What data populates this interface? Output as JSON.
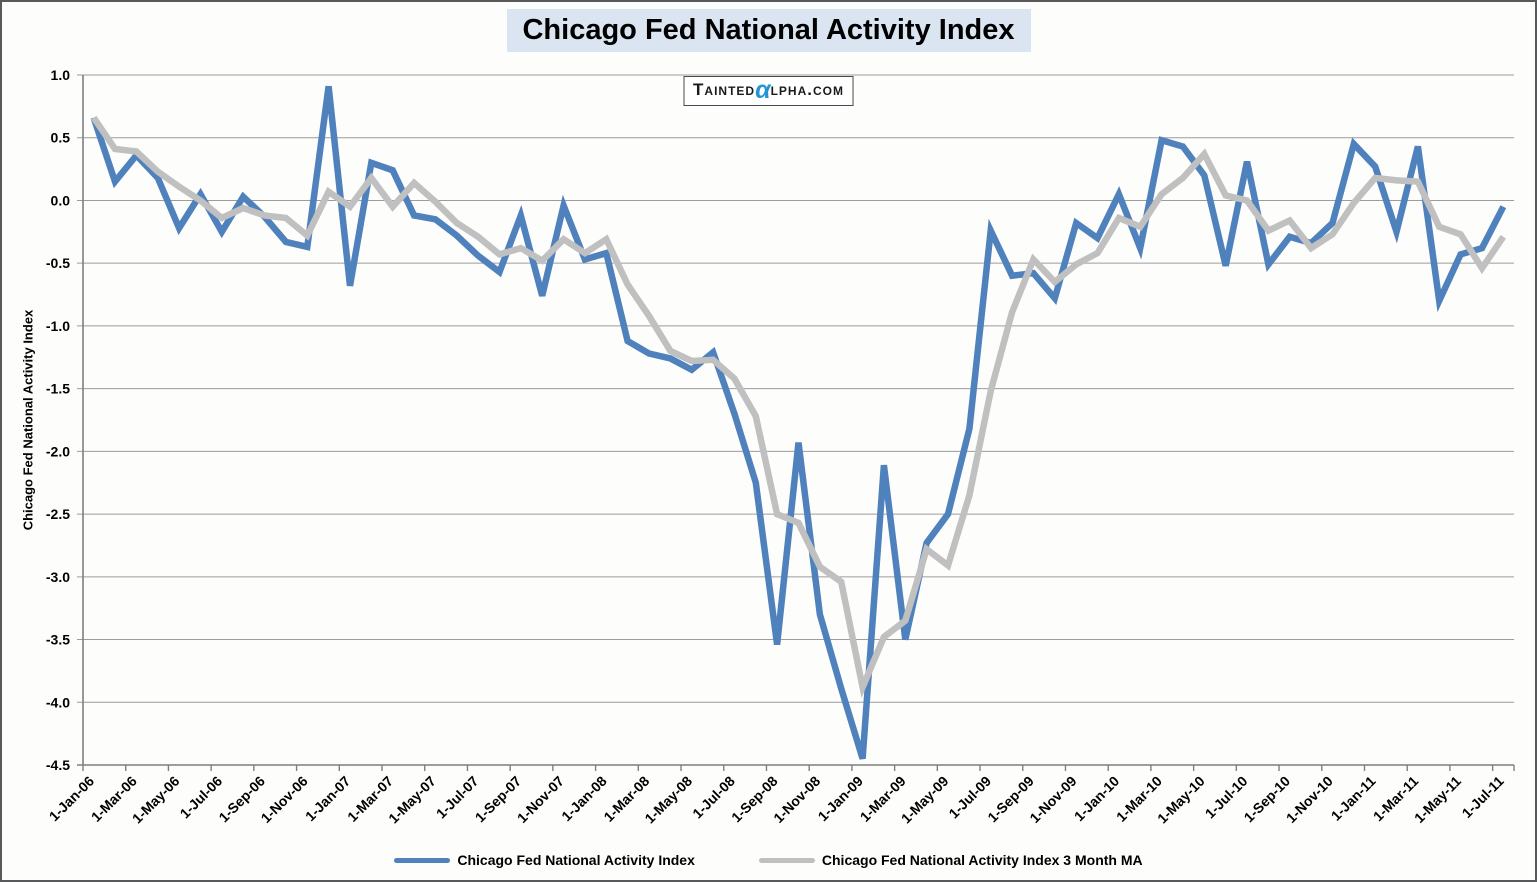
{
  "title": {
    "text": "Chicago Fed National Activity Index",
    "highlight_color": "#DBE5F1"
  },
  "logo": {
    "prefix": "Tainted",
    "alpha": "α",
    "suffix": "lpha.com",
    "alpha_color": "#2595D2"
  },
  "colors": {
    "series_index": "#4F81BD",
    "series_ma3": "#C0C0C0",
    "gridline": "#9C9C9C",
    "axis": "#7F7F7F",
    "page_border": "#58595B",
    "title_background": "#DBE5F1"
  },
  "chart_data": {
    "type": "line",
    "title": "Chicago Fed National Activity Index",
    "xlabel": "",
    "ylabel": "Chicago Fed National Activity Index",
    "ylim": [
      -4.5,
      1.0
    ],
    "grid": "horizontal",
    "legend_position": "bottom",
    "frequency": "monthly",
    "start": "1-Jan-06",
    "end": "1-Jul-11",
    "y_ticks": [
      1.0,
      0.5,
      0.0,
      -0.5,
      -1.0,
      -1.5,
      -2.0,
      -2.5,
      -3.0,
      -3.5,
      -4.0,
      -4.5
    ],
    "y_tick_labels": [
      "1.0",
      "0.5",
      "0.0",
      "-0.5",
      "-1.0",
      "-1.5",
      "-2.0",
      "-2.5",
      "-3.0",
      "-3.5",
      "-4.0",
      "-4.5"
    ],
    "x_tick_interval_months": 2,
    "x_tick_labels": [
      "1-Jan-06",
      "1-Mar-06",
      "1-May-06",
      "1-Jul-06",
      "1-Sep-06",
      "1-Nov-06",
      "1-Jan-07",
      "1-Mar-07",
      "1-May-07",
      "1-Jul-07",
      "1-Sep-07",
      "1-Nov-07",
      "1-Jan-08",
      "1-Mar-08",
      "1-May-08",
      "1-Jul-08",
      "1-Sep-08",
      "1-Nov-08",
      "1-Jan-09",
      "1-Mar-09",
      "1-May-09",
      "1-Jul-09",
      "1-Sep-09",
      "1-Nov-09",
      "1-Jan-10",
      "1-Mar-10",
      "1-May-10",
      "1-Jul-10",
      "1-Sep-10",
      "1-Nov-10",
      "1-Jan-11",
      "1-Mar-11",
      "1-May-11",
      "1-Jul-11"
    ],
    "series": [
      {
        "name": "Chicago Fed National Activity Index",
        "color": "#4F81BD",
        "line_width": 6.5,
        "values": [
          0.66,
          0.15,
          0.36,
          0.18,
          -0.22,
          0.05,
          -0.25,
          0.03,
          -0.13,
          -0.33,
          -0.37,
          0.91,
          -0.68,
          0.3,
          0.24,
          -0.12,
          -0.15,
          -0.28,
          -0.44,
          -0.57,
          -0.12,
          -0.76,
          -0.04,
          -0.47,
          -0.42,
          -1.12,
          -1.22,
          -1.26,
          -1.35,
          -1.21,
          -1.7,
          -2.25,
          -3.54,
          -1.93,
          -3.3,
          -3.89,
          -4.45,
          -2.11,
          -3.5,
          -2.73,
          -2.5,
          -1.82,
          -0.24,
          -0.6,
          -0.58,
          -0.78,
          -0.18,
          -0.3,
          0.05,
          -0.38,
          0.48,
          0.43,
          0.2,
          -0.52,
          0.31,
          -0.51,
          -0.29,
          -0.34,
          -0.18,
          0.45,
          0.27,
          -0.25,
          0.43,
          -0.8,
          -0.43,
          -0.38,
          -0.05
        ]
      },
      {
        "name": "Chicago Fed National Activity Index 3 Month MA",
        "color": "#C0C0C0",
        "line_width": 6.5,
        "values": [
          0.66,
          0.41,
          0.39,
          0.23,
          0.11,
          0.0,
          -0.14,
          -0.06,
          -0.12,
          -0.14,
          -0.28,
          0.07,
          -0.05,
          0.18,
          -0.05,
          0.14,
          -0.01,
          -0.18,
          -0.29,
          -0.43,
          -0.38,
          -0.48,
          -0.31,
          -0.42,
          -0.31,
          -0.67,
          -0.92,
          -1.2,
          -1.28,
          -1.27,
          -1.42,
          -1.72,
          -2.5,
          -2.57,
          -2.92,
          -3.04,
          -3.88,
          -3.48,
          -3.35,
          -2.78,
          -2.91,
          -2.35,
          -1.52,
          -0.89,
          -0.47,
          -0.65,
          -0.51,
          -0.42,
          -0.14,
          -0.21,
          0.05,
          0.18,
          0.37,
          0.04,
          0.0,
          -0.24,
          -0.16,
          -0.38,
          -0.27,
          -0.02,
          0.18,
          0.16,
          0.15,
          -0.21,
          -0.27,
          -0.54,
          -0.29
        ]
      }
    ]
  }
}
